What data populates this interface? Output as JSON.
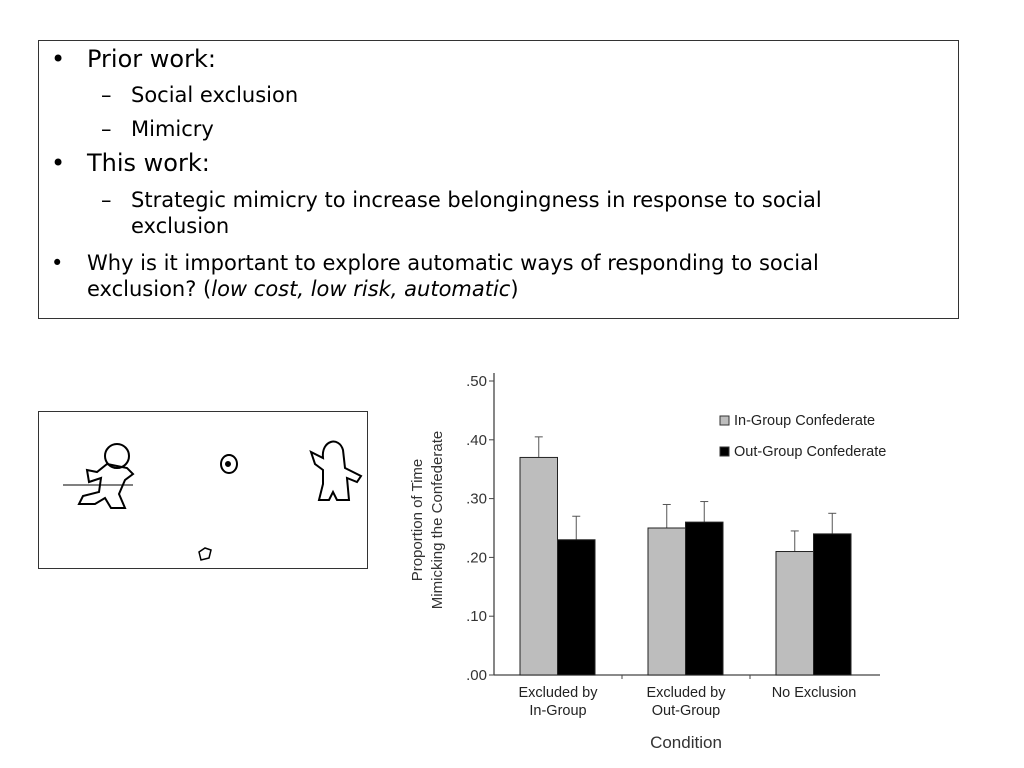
{
  "bullets": {
    "prior_work": "Prior work:",
    "social_exclusion": "Social exclusion",
    "mimicry": "Mimicry",
    "this_work": "This work:",
    "strategic": "Strategic mimicry to increase belongingness in response to social exclusion",
    "why_prefix": "Why is it important to explore automatic ways of responding to social exclusion? (",
    "why_italic": "low cost, low risk, automatic",
    "why_suffix": ")"
  },
  "bullet_char": "•",
  "dash_char": "–",
  "chart_data": {
    "type": "bar",
    "categories": [
      "Excluded by In-Group",
      "Excluded by Out-Group",
      "No Exclusion"
    ],
    "category_lines": [
      [
        "Excluded by",
        "In-Group"
      ],
      [
        "Excluded by",
        "Out-Group"
      ],
      [
        "No Exclusion"
      ]
    ],
    "series": [
      {
        "name": "In-Group Confederate",
        "values": [
          0.37,
          0.25,
          0.21
        ],
        "error_upper": [
          0.405,
          0.29,
          0.245
        ],
        "color": "#bdbdbd"
      },
      {
        "name": "Out-Group Confederate",
        "values": [
          0.23,
          0.26,
          0.24
        ],
        "error_upper": [
          0.27,
          0.295,
          0.275
        ],
        "color": "#000000"
      }
    ],
    "xlabel": "Condition",
    "ylabel_lines": [
      "Proportion of Time",
      "Mimicking the Confederate"
    ],
    "ylim": [
      0,
      0.5
    ],
    "yticks": [
      ".00",
      ".10",
      ".20",
      ".30",
      ".40",
      ".50"
    ],
    "legend": "top-right",
    "grid": false
  }
}
